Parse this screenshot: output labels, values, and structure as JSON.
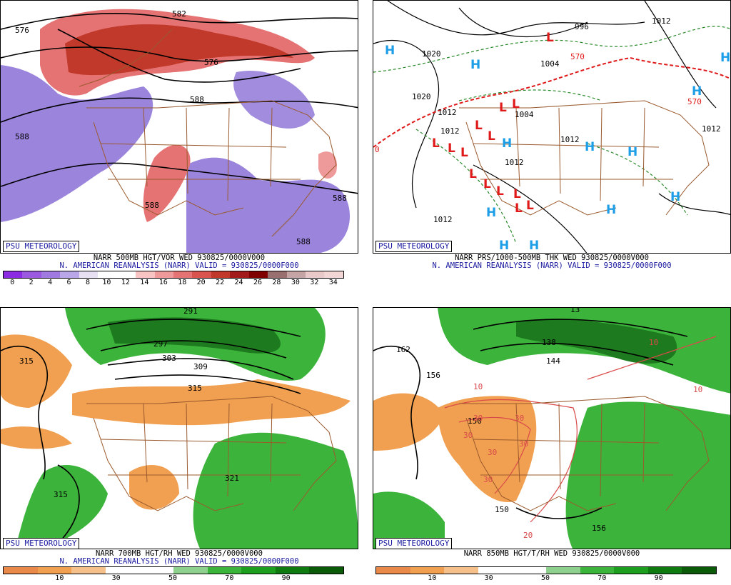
{
  "panels": {
    "p1": {
      "badge": "PSU METEOROLOGY",
      "title": "NARR 500MB HGT/VOR WED 930825/0000V000",
      "subtitle": "N. AMERICAN REANALYSIS (NARR) VALID = 930825/0000F000",
      "legend_labels": [
        "0",
        "2",
        "4",
        "6",
        "8",
        "10",
        "12",
        "14",
        "16",
        "18",
        "20",
        "22",
        "24",
        "26",
        "28",
        "30",
        "32",
        "34"
      ],
      "legend_colors": [
        "#8b2be2",
        "#9b58e0",
        "#a07ae0",
        "#b8a6e8",
        "#e6e0f2",
        "#ffffff",
        "#ffffff",
        "#f7c3c3",
        "#ef9a9a",
        "#e57373",
        "#d9534f",
        "#c0392b",
        "#a31a1a",
        "#800000",
        "#9a6f6f",
        "#c4a4a4",
        "#e8c8c8",
        "#f2d6d6"
      ],
      "contour_labels": [
        "576",
        "576",
        "588",
        "588",
        "588",
        "588",
        "588",
        "582"
      ]
    },
    "p2": {
      "badge": "PSU METEOROLOGY",
      "title": "NARR PRS/1000-500MB THK WED 930825/0000V000",
      "subtitle": "N. AMERICAN REANALYSIS (NARR) VALID = 930825/0000F000",
      "contour_labels": [
        "996",
        "1012",
        "1020",
        "1020",
        "1012",
        "1004",
        "1004",
        "1012",
        "1012",
        "1012",
        "1012",
        "1012",
        "570",
        "570",
        "0"
      ],
      "high_symbol": "H",
      "low_symbol": "L"
    },
    "p3": {
      "badge": "PSU METEOROLOGY",
      "title": "NARR 700MB HGT/RH WED 930825/0000V000",
      "subtitle": "N. AMERICAN REANALYSIS (NARR) VALID = 930825/0000F000",
      "legend_labels": [
        "10",
        "30",
        "50",
        "70",
        "90"
      ],
      "contour_labels": [
        "291",
        "297",
        "303",
        "309",
        "315",
        "315",
        "321",
        "315"
      ]
    },
    "p4": {
      "badge": "PSU METEOROLOGY",
      "title": "NARR 850MB HGT/T/RH WED 930825/0000V000",
      "legend_labels": [
        "10",
        "30",
        "50",
        "70",
        "90"
      ],
      "contour_labels": [
        "13",
        "138",
        "144",
        "162",
        "156",
        "150",
        "150",
        "156",
        "30",
        "30",
        "30",
        "30",
        "30",
        "30",
        "10",
        "10",
        "10",
        "20",
        "10"
      ]
    }
  },
  "colors": {
    "vor_purple": "#8a6fd6",
    "vor_red": "#d84848",
    "rh_green": "#3cb43c",
    "rh_orange": "#f0a050",
    "border_brown": "#9b5a2e",
    "high_cyan": "#1e9ee6",
    "low_red": "#e01a1a",
    "thick_red": "#e01a1a",
    "dash_green": "#2a8a2a"
  }
}
